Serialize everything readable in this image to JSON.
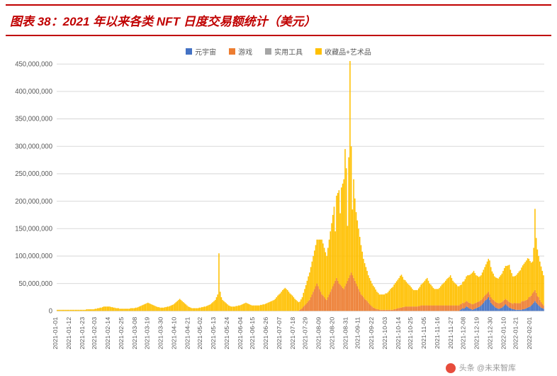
{
  "title": {
    "text": "图表 38：2021 年以来各类 NFT 日度交易额统计（美元）",
    "color": "#c00000",
    "border_color": "#c00000",
    "fontsize": 17
  },
  "chart": {
    "type": "stacked-bar",
    "background_color": "#ffffff",
    "grid_color": "#d9d9d9",
    "ylim": [
      0,
      450000000
    ],
    "ytick_step": 50000000,
    "yticks": [
      "0",
      "50,000,000",
      "100,000,000",
      "150,000,000",
      "200,000,000",
      "250,000,000",
      "300,000,000",
      "350,000,000",
      "400,000,000",
      "450,000,000"
    ],
    "bar_width": 0.9,
    "label_fontsize": 9,
    "legend": [
      {
        "label": "元宇宙",
        "color": "#4472c4"
      },
      {
        "label": "游戏",
        "color": "#ed7d31"
      },
      {
        "label": "实用工具",
        "color": "#a5a5a5"
      },
      {
        "label": "收藏品+艺术品",
        "color": "#ffc000"
      }
    ],
    "x_labels": [
      "2021-01-01",
      "2021-01-12",
      "2021-01-23",
      "2021-02-03",
      "2021-02-14",
      "2021-02-25",
      "2021-03-08",
      "2021-03-19",
      "2021-03-30",
      "2021-04-10",
      "2021-04-21",
      "2021-05-02",
      "2021-05-13",
      "2021-05-24",
      "2021-06-04",
      "2021-06-15",
      "2021-06-26",
      "2021-07-07",
      "2021-07-18",
      "2021-07-29",
      "2021-08-09",
      "2021-08-20",
      "2021-08-31",
      "2021-09-11",
      "2021-09-22",
      "2021-10-03",
      "2021-10-14",
      "2021-10-25",
      "2021-11-05",
      "2021-11-16",
      "2021-11-27",
      "2021-12-08",
      "2021-12-19",
      "2021-12-30",
      "2022-01-10",
      "2022-01-21",
      "2022-02-01"
    ],
    "series": {
      "metaverse": [
        0,
        0,
        0,
        0,
        0,
        0,
        0,
        0,
        0,
        0,
        0,
        0,
        0,
        0,
        0,
        0,
        0,
        0,
        0,
        0,
        0,
        0,
        0,
        0,
        0,
        0,
        0,
        0,
        0,
        0,
        0,
        0,
        0,
        0,
        0,
        0,
        0,
        0,
        0,
        0,
        0,
        0,
        0,
        0,
        0,
        0,
        0,
        0,
        0,
        0,
        0,
        0,
        0,
        0,
        0,
        0,
        0,
        0,
        0,
        0,
        0,
        0,
        0,
        0,
        0,
        0,
        0,
        0,
        0,
        0,
        0,
        0,
        0,
        0,
        0,
        0,
        0,
        0,
        0,
        0,
        0,
        0,
        0,
        0,
        0,
        0,
        0,
        0,
        0,
        0,
        0,
        0,
        0,
        0,
        0,
        0,
        0,
        0,
        0,
        0,
        0,
        0,
        0,
        0,
        0,
        0,
        0,
        0,
        0,
        0,
        0,
        0,
        0,
        0,
        0,
        0,
        0,
        0,
        0,
        0,
        0,
        0,
        0,
        0,
        0,
        0,
        0,
        0,
        0,
        0,
        0,
        0,
        0,
        0,
        0,
        0,
        0,
        0,
        0,
        0,
        0,
        0,
        0,
        0,
        0,
        0,
        0,
        0,
        0,
        0,
        0,
        0,
        0,
        0,
        0,
        0,
        0,
        0,
        0,
        0,
        0,
        0,
        0,
        0,
        0,
        0,
        0,
        0,
        0,
        0,
        0,
        0,
        0,
        0,
        0,
        0,
        0,
        0,
        0,
        0,
        0,
        0,
        0,
        0,
        0,
        0,
        0,
        0,
        0,
        0,
        0,
        0,
        0,
        0,
        0,
        0,
        0,
        0,
        0,
        0,
        0,
        0,
        0,
        0,
        0,
        0,
        0,
        0,
        0,
        0,
        0,
        0,
        0,
        0,
        0,
        0,
        0,
        0,
        0,
        0,
        0,
        0,
        0,
        0,
        0,
        0,
        0,
        0,
        0,
        0,
        0,
        0,
        0,
        0,
        0,
        0,
        0,
        0,
        0,
        0,
        0,
        0,
        0,
        0,
        0,
        0,
        0,
        0,
        0,
        0,
        0,
        0,
        0,
        0,
        0,
        0,
        0,
        0,
        0,
        0,
        0,
        0,
        0,
        0,
        0,
        0,
        0,
        0,
        0,
        0,
        0,
        0,
        0,
        0,
        0,
        0,
        0,
        0,
        0,
        0,
        0,
        0,
        0,
        0,
        0,
        0,
        0,
        0,
        0,
        0,
        0,
        0,
        0,
        0,
        0,
        0,
        0,
        0,
        0,
        0,
        0,
        0,
        0,
        0,
        0,
        0,
        0,
        0,
        0,
        0,
        0,
        0,
        0,
        0,
        0,
        0,
        0,
        0,
        0,
        0,
        0,
        0,
        0,
        0,
        0,
        0,
        0,
        0,
        0,
        2,
        3,
        5,
        4,
        6,
        8,
        7,
        5,
        4,
        3,
        2,
        3,
        4,
        5,
        6,
        7,
        8,
        10,
        12,
        15,
        18,
        20,
        22,
        25,
        20,
        15,
        12,
        10,
        8,
        6,
        5,
        4,
        4,
        5,
        6,
        8,
        10,
        12,
        10,
        8,
        6,
        5,
        4,
        3,
        3,
        2,
        2,
        2,
        2,
        2,
        2,
        3,
        3,
        4,
        5,
        6,
        7,
        8,
        10,
        12,
        15,
        18,
        15,
        12,
        10,
        8,
        6,
        5,
        4
      ],
      "game": [
        0,
        0,
        0,
        0,
        0,
        0,
        0,
        0,
        0,
        0,
        0,
        0,
        0,
        0,
        0,
        0,
        0,
        0,
        0,
        0,
        0,
        0,
        0,
        0,
        0,
        0,
        0,
        0,
        0,
        0,
        0,
        0,
        0,
        0,
        0,
        0,
        0,
        0,
        0,
        0,
        0,
        0,
        0,
        0,
        0,
        0,
        0,
        0,
        0,
        0,
        0,
        0,
        0,
        0,
        0,
        0,
        0,
        0,
        0,
        0,
        0,
        0,
        0,
        0,
        0,
        0,
        0,
        0,
        0,
        0,
        0,
        0,
        0,
        0,
        0,
        0,
        0,
        0,
        0,
        0,
        0,
        0,
        0,
        0,
        0,
        0,
        0,
        0,
        0,
        0,
        0,
        0,
        0,
        0,
        0,
        0,
        0,
        0,
        0,
        0,
        0,
        0,
        0,
        0,
        0,
        0,
        0,
        0,
        0,
        0,
        0,
        0,
        0,
        0,
        0,
        0,
        0,
        0,
        0,
        0,
        0,
        0,
        0,
        0,
        0,
        0,
        0,
        0,
        0,
        0,
        0,
        0,
        0,
        0,
        0,
        0,
        0,
        0,
        0,
        0,
        0,
        0,
        0,
        0,
        0,
        0,
        0,
        0,
        0,
        0,
        0,
        0,
        0,
        0,
        0,
        0,
        0,
        0,
        0,
        0,
        0,
        0,
        0,
        0,
        0,
        0,
        0,
        0,
        0,
        0,
        0,
        0,
        0,
        0,
        0,
        0,
        0,
        0,
        0,
        0,
        0,
        0,
        0,
        0,
        0,
        0,
        0,
        0,
        0,
        0,
        0,
        0,
        0,
        0,
        0,
        0,
        0,
        0,
        2,
        3,
        5,
        8,
        10,
        12,
        15,
        18,
        20,
        25,
        30,
        35,
        40,
        45,
        50,
        45,
        40,
        35,
        30,
        28,
        25,
        22,
        20,
        25,
        30,
        35,
        40,
        45,
        50,
        55,
        60,
        55,
        50,
        48,
        45,
        42,
        40,
        45,
        50,
        55,
        60,
        65,
        70,
        65,
        60,
        55,
        50,
        45,
        40,
        35,
        30,
        28,
        25,
        22,
        20,
        18,
        15,
        12,
        10,
        8,
        6,
        5,
        4,
        3,
        3,
        2,
        2,
        2,
        2,
        2,
        2,
        2,
        2,
        2,
        2,
        2,
        2,
        3,
        3,
        4,
        5,
        5,
        6,
        6,
        7,
        7,
        8,
        8,
        8,
        8,
        8,
        8,
        8,
        8,
        8,
        8,
        8,
        9,
        9,
        10,
        10,
        10,
        10,
        10,
        10,
        10,
        10,
        10,
        10,
        10,
        10,
        10,
        10,
        10,
        10,
        10,
        10,
        10,
        10,
        10,
        10,
        10,
        10,
        10,
        10,
        10,
        10,
        10,
        10,
        10,
        10,
        10,
        10,
        10,
        10,
        10,
        10,
        10,
        10,
        10,
        10,
        10,
        10,
        10,
        10,
        10,
        10,
        10,
        10,
        10,
        10,
        10,
        10,
        10,
        10,
        10,
        10,
        10,
        10,
        10,
        10,
        10,
        10,
        10,
        10,
        10,
        10,
        10,
        10,
        10,
        10,
        10,
        10,
        10,
        10,
        12,
        12,
        12,
        12,
        12,
        12,
        15,
        15,
        15,
        15,
        15,
        15,
        18,
        18,
        18,
        20,
        20,
        20,
        18,
        15,
        15,
        12,
        10,
        8,
        6
      ],
      "utility": [
        0,
        0,
        0,
        0,
        0,
        0,
        0,
        0,
        0,
        0,
        0,
        0,
        0,
        0,
        0,
        0,
        0,
        0,
        0,
        0,
        0,
        0,
        0,
        0,
        0,
        0,
        0,
        0,
        0,
        0,
        0,
        0,
        0,
        0,
        0,
        0,
        0,
        0,
        0,
        0,
        0,
        0,
        0,
        0,
        0,
        0,
        0,
        0,
        0,
        0,
        0,
        0,
        0,
        0,
        0,
        0,
        0,
        0,
        0,
        0,
        0,
        0,
        0,
        0,
        0,
        0,
        0,
        0,
        0,
        0,
        0,
        0,
        0,
        0,
        0,
        0,
        0,
        0,
        0,
        0,
        0,
        0,
        0,
        0,
        0,
        0,
        0,
        0,
        0,
        0,
        0,
        0,
        0,
        0,
        0,
        0,
        0,
        0,
        0,
        0,
        0,
        0,
        0,
        0,
        0,
        0,
        0,
        0,
        0,
        0,
        0,
        0,
        0,
        0,
        0,
        0,
        0,
        0,
        0,
        0,
        0,
        0,
        0,
        0,
        0,
        0,
        0,
        0,
        0,
        0,
        0,
        0,
        0,
        0,
        0,
        0,
        0,
        0,
        0,
        0,
        0,
        0,
        0,
        0,
        0,
        0,
        0,
        0,
        0,
        0,
        0,
        0,
        0,
        0,
        0,
        0,
        0,
        0,
        0,
        0,
        0,
        0,
        0,
        0,
        0,
        0,
        0,
        0,
        0,
        0,
        0,
        0,
        0,
        0,
        0,
        0,
        0,
        0,
        0,
        0,
        0,
        0,
        0,
        0,
        0,
        0,
        0,
        0,
        0,
        0,
        0,
        0,
        0,
        0,
        0,
        0,
        0,
        0,
        0,
        0,
        0,
        0,
        0,
        0,
        0,
        0,
        0,
        0,
        0,
        0,
        0,
        0,
        0,
        0,
        0,
        0,
        0,
        0,
        0,
        0,
        0,
        0,
        0,
        0,
        0,
        0,
        0,
        0,
        0,
        0,
        0,
        0,
        0,
        0,
        0,
        0,
        0,
        0,
        0,
        0,
        0,
        0,
        0,
        0,
        0,
        0,
        0,
        0,
        0,
        0,
        0,
        0,
        0,
        0,
        0,
        0,
        0,
        0,
        0,
        0,
        0,
        0,
        0,
        0,
        0,
        0,
        0,
        0,
        0,
        0,
        0,
        0,
        0,
        0,
        0,
        0,
        0,
        0,
        0,
        0,
        0,
        0,
        0,
        0,
        0,
        0,
        0,
        0,
        0,
        0,
        0,
        0,
        0,
        0,
        0,
        0,
        0,
        0,
        0,
        0,
        0,
        0,
        0,
        0,
        0,
        0,
        0,
        0,
        0,
        0,
        0,
        0,
        0,
        0,
        0,
        0,
        0,
        0,
        0,
        0,
        0,
        0,
        0,
        0,
        0,
        0,
        0,
        0,
        0,
        0,
        0,
        0,
        0,
        0,
        0,
        0,
        0,
        0,
        0,
        0,
        0,
        0,
        0,
        0,
        0,
        0,
        0,
        0,
        0,
        0,
        0,
        0,
        0,
        0,
        0,
        0,
        0,
        0,
        0,
        0,
        0,
        0,
        0,
        0,
        0,
        0,
        0,
        0,
        0,
        0,
        0,
        0,
        0,
        0,
        0,
        0,
        0,
        0,
        0,
        0,
        0,
        0,
        0,
        0,
        0,
        0,
        0,
        0,
        0,
        0,
        0,
        0,
        0,
        0,
        0,
        0,
        0,
        0
      ],
      "collectible": [
        2,
        2,
        2,
        2,
        2,
        2,
        2,
        2,
        2,
        2,
        2,
        2,
        2,
        2,
        2,
        2,
        2,
        2,
        2,
        2,
        2,
        2,
        2,
        2,
        3,
        3,
        3,
        3,
        3,
        3,
        3,
        4,
        4,
        5,
        5,
        6,
        6,
        7,
        8,
        8,
        8,
        8,
        8,
        8,
        7,
        7,
        6,
        6,
        5,
        5,
        5,
        4,
        4,
        4,
        4,
        4,
        4,
        4,
        4,
        4,
        5,
        5,
        5,
        5,
        6,
        6,
        7,
        8,
        9,
        10,
        11,
        12,
        13,
        14,
        15,
        14,
        13,
        12,
        11,
        10,
        9,
        8,
        7,
        7,
        6,
        6,
        6,
        6,
        7,
        7,
        8,
        8,
        9,
        10,
        11,
        12,
        14,
        16,
        18,
        20,
        22,
        20,
        18,
        16,
        14,
        12,
        10,
        8,
        7,
        6,
        5,
        5,
        5,
        5,
        5,
        5,
        6,
        6,
        7,
        7,
        8,
        8,
        9,
        10,
        11,
        12,
        14,
        16,
        18,
        20,
        25,
        30,
        105,
        35,
        25,
        20,
        18,
        16,
        14,
        12,
        10,
        9,
        8,
        8,
        8,
        8,
        9,
        9,
        10,
        10,
        11,
        12,
        13,
        14,
        15,
        14,
        13,
        12,
        11,
        10,
        10,
        10,
        10,
        10,
        10,
        10,
        11,
        11,
        12,
        12,
        13,
        14,
        15,
        16,
        17,
        18,
        19,
        20,
        22,
        25,
        28,
        30,
        32,
        35,
        38,
        40,
        42,
        40,
        38,
        35,
        32,
        30,
        28,
        25,
        22,
        20,
        18,
        16,
        15,
        18,
        20,
        25,
        30,
        35,
        40,
        45,
        50,
        55,
        60,
        65,
        70,
        75,
        80,
        85,
        90,
        95,
        100,
        95,
        90,
        85,
        80,
        90,
        100,
        110,
        120,
        130,
        140,
        90,
        150,
        160,
        170,
        130,
        180,
        190,
        200,
        250,
        210,
        100,
        220,
        395,
        230,
        120,
        180,
        150,
        130,
        120,
        110,
        100,
        90,
        80,
        70,
        65,
        60,
        55,
        50,
        48,
        45,
        42,
        40,
        38,
        35,
        32,
        30,
        28,
        28,
        28,
        28,
        28,
        30,
        30,
        32,
        35,
        38,
        40,
        42,
        45,
        48,
        50,
        52,
        55,
        58,
        60,
        55,
        50,
        48,
        45,
        42,
        40,
        38,
        35,
        32,
        30,
        30,
        30,
        30,
        32,
        35,
        38,
        40,
        42,
        45,
        48,
        50,
        45,
        40,
        38,
        35,
        32,
        30,
        30,
        30,
        30,
        32,
        35,
        38,
        40,
        42,
        45,
        48,
        50,
        52,
        55,
        50,
        45,
        42,
        40,
        38,
        35,
        35,
        35,
        35,
        38,
        40,
        42,
        45,
        48,
        50,
        52,
        55,
        58,
        60,
        55,
        50,
        48,
        45,
        45,
        45,
        48,
        50,
        52,
        55,
        58,
        60,
        62,
        55,
        50,
        48,
        45,
        45,
        45,
        45,
        48,
        50,
        52,
        55,
        58,
        60,
        62,
        65,
        68,
        60,
        55,
        50,
        48,
        50,
        52,
        55,
        58,
        60,
        62,
        65,
        68,
        70,
        72,
        75,
        70,
        65,
        60,
        58,
        80,
        148,
        100,
        85,
        75,
        70,
        65,
        60,
        55
      ]
    }
  },
  "footer": {
    "text": "头条 @未来智库"
  }
}
